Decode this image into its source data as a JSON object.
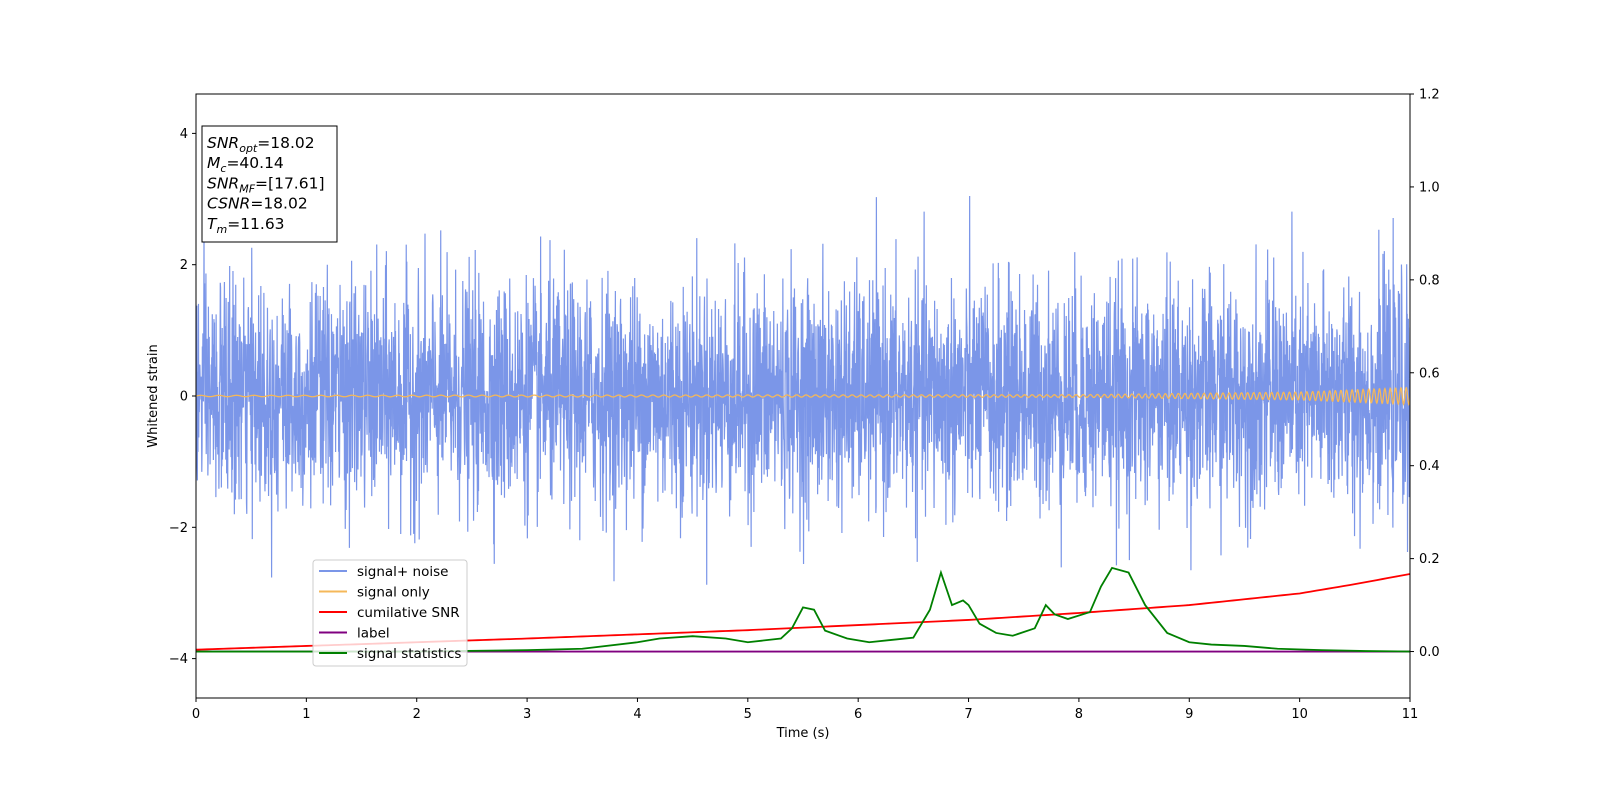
{
  "chart_data": {
    "type": "line",
    "xlabel": "Time (s)",
    "ylabel": "Whitened strain",
    "xlim": [
      0,
      11
    ],
    "ylim_left": [
      -4.6,
      4.6
    ],
    "ylim_right": [
      -0.1,
      1.2
    ],
    "x_ticks": [
      0,
      1,
      2,
      3,
      4,
      5,
      6,
      7,
      8,
      9,
      10,
      11
    ],
    "y_ticks_left": [
      -4,
      -2,
      0,
      2,
      4
    ],
    "y_ticks_right": [
      0.0,
      0.2,
      0.4,
      0.6,
      0.8,
      1.0,
      1.2
    ],
    "annotation_lines": [
      {
        "base": "SNR",
        "sub": "opt",
        "rest": "=18.02"
      },
      {
        "base": "M",
        "sub": "c",
        "rest": "=40.14"
      },
      {
        "base": "SNR",
        "sub": "MF",
        "rest": "=[17.61]"
      },
      {
        "base": "CSNR",
        "sub": "",
        "rest": "=18.02"
      },
      {
        "base": "T",
        "sub": "m",
        "rest": "=11.63"
      }
    ],
    "legend_position": "lower-left",
    "series": [
      {
        "name": "signal+ noise",
        "color": "#7b96e8",
        "axis": "left",
        "amplitude_envelope": [
          -3.2,
          3.1
        ],
        "note_values": "dense noise trace around 0"
      },
      {
        "name": "signal only",
        "color": "#f5b85a",
        "axis": "left",
        "x": [
          0,
          8,
          10,
          11
        ],
        "amplitude": [
          0.01,
          0.02,
          0.06,
          0.13
        ]
      },
      {
        "name": "cumilative SNR",
        "color": "#ff0000",
        "axis": "right",
        "x": [
          0,
          1,
          2,
          3,
          4,
          5,
          6,
          7,
          8,
          9,
          10,
          10.5,
          11
        ],
        "values": [
          0.004,
          0.012,
          0.02,
          0.028,
          0.037,
          0.046,
          0.057,
          0.068,
          0.083,
          0.1,
          0.125,
          0.145,
          0.167
        ]
      },
      {
        "name": "label",
        "color": "#800080",
        "axis": "right",
        "x": [
          0,
          11
        ],
        "values": [
          0.0,
          0.0
        ]
      },
      {
        "name": "signal statistics",
        "color": "#008000",
        "axis": "right",
        "x": [
          0,
          2,
          3,
          3.5,
          4,
          4.2,
          4.5,
          4.8,
          5.0,
          5.3,
          5.4,
          5.5,
          5.6,
          5.7,
          5.9,
          6.1,
          6.3,
          6.5,
          6.65,
          6.75,
          6.85,
          6.95,
          7.0,
          7.1,
          7.25,
          7.4,
          7.6,
          7.7,
          7.78,
          7.9,
          8.1,
          8.2,
          8.3,
          8.45,
          8.6,
          8.8,
          9.0,
          9.2,
          9.5,
          9.8,
          10.2,
          10.6,
          11.0
        ],
        "values": [
          0.0,
          0.0,
          0.003,
          0.006,
          0.02,
          0.028,
          0.033,
          0.028,
          0.02,
          0.028,
          0.05,
          0.095,
          0.09,
          0.045,
          0.028,
          0.02,
          0.025,
          0.03,
          0.09,
          0.17,
          0.1,
          0.11,
          0.1,
          0.06,
          0.04,
          0.034,
          0.05,
          0.1,
          0.08,
          0.07,
          0.085,
          0.14,
          0.18,
          0.17,
          0.1,
          0.04,
          0.02,
          0.015,
          0.012,
          0.006,
          0.003,
          0.001,
          0.0
        ]
      }
    ]
  }
}
